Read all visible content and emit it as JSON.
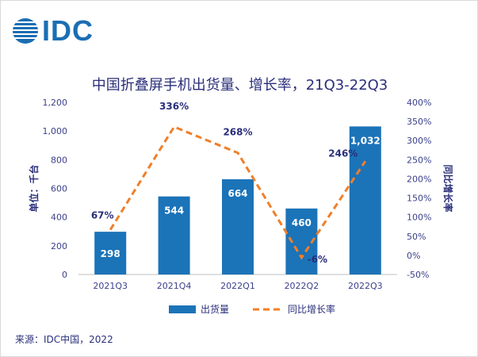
{
  "logo": {
    "text": "IDC"
  },
  "source": "来源：IDC中国，2022",
  "colors": {
    "bar": "#1b73b8",
    "line": "#f07f2a",
    "text": "#2a2f7a",
    "axis": "#3a3f8a"
  },
  "chart_data": {
    "type": "bar",
    "title": "中国折叠屏手机出货量、增长率，21Q3-22Q3",
    "categories": [
      "2021Q3",
      "2021Q4",
      "2022Q1",
      "2022Q2",
      "2022Q3"
    ],
    "series": [
      {
        "name": "出货量",
        "type": "bar",
        "axis": "left",
        "values": [
          298,
          544,
          664,
          460,
          1032
        ],
        "labels": [
          "298",
          "544",
          "664",
          "460",
          "1,032"
        ]
      },
      {
        "name": "同比增长率",
        "type": "line",
        "style": "dashed",
        "axis": "right",
        "values": [
          67,
          336,
          268,
          -6,
          246
        ],
        "labels": [
          "67%",
          "336%",
          "268%",
          "-6%",
          "246%"
        ]
      }
    ],
    "ylabel": "单位：千台",
    "y2label": "同比增长率",
    "ylim": [
      0,
      1200
    ],
    "y_ticks": [
      "0",
      "200",
      "400",
      "600",
      "800",
      "1,000",
      "1,200"
    ],
    "y2lim": [
      -50,
      400
    ],
    "y2_ticks": [
      "-50%",
      "0%",
      "50%",
      "100%",
      "150%",
      "200%",
      "250%",
      "300%",
      "350%",
      "400%"
    ],
    "legend_position": "bottom",
    "grid": false
  }
}
